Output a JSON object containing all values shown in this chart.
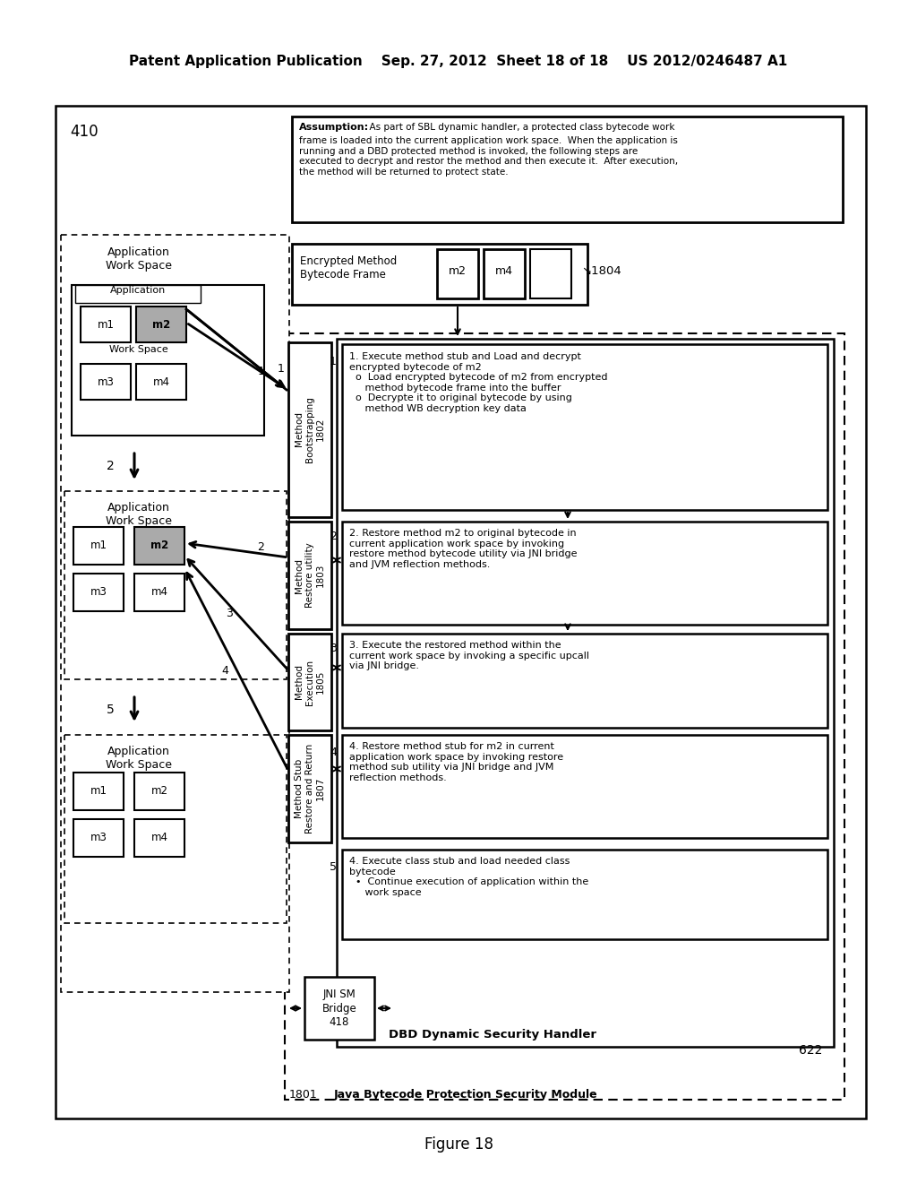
{
  "background": "#ffffff",
  "header_text": "Patent Application Publication    Sep. 27, 2012  Sheet 18 of 18    US 2012/0246487 A1",
  "figure_label": "Figure 18",
  "assumption_text": "Assumption:  As part of SBL dynamic handler, a protected class bytecode work\nframe is loaded into the current application work space.  When the application is\nrunning and a DBD protected method is invoked, the following steps are\nexecuted to decrypt and restor the method and then execute it.  After execution,\nthe method will be returned to protect state.",
  "label_410": "410",
  "label_1801": "1801",
  "label_1802": "Method\nBootstrapping\n1802",
  "label_1803": "Method\nRestore utility\n1803",
  "label_1805": "Method\nExecution\n1805",
  "label_1807": "Method Stub\nRestore and Return\n1807",
  "label_1804": "1804",
  "encrypted_frame_label": "Encrypted Method\nBytecode Frame",
  "jni_sm_label": "JNI SM\nBridge\n418",
  "dbd_label": "DBD Dynamic Security Handler",
  "dbd_num": "622",
  "java_bytecode_label": "Java Bytecode Protection Security Module",
  "step1_text": "1. Execute method stub and Load and decrypt\nencrypted bytecode of m2\n  o  Load encrypted bytecode of m2 from encrypted\n     method bytecode frame into the buffer\n  o  Decrypte it to original bytecode by using\n     method WB decryption key data",
  "step2_text": "2. Restore method m2 to original bytecode in\ncurrent application work space by invoking\nrestore method bytecode utility via JNI bridge\nand JVM reflection methods.",
  "step3_text": "3. Execute the restored method within the\ncurrent work space by invoking a specific upcall\nvia JNI bridge.",
  "step4a_text": "4. Restore method stub for m2 in current\napplication work space by invoking restore\nmethod sub utility via JNI bridge and JVM\nreflection methods.",
  "step4b_text": "4. Execute class stub and load needed class\nbytecode\n  •  Continue execution of application within the\n     work space",
  "app_workspace_label": "Application\nWork Space",
  "app_label": "Application"
}
